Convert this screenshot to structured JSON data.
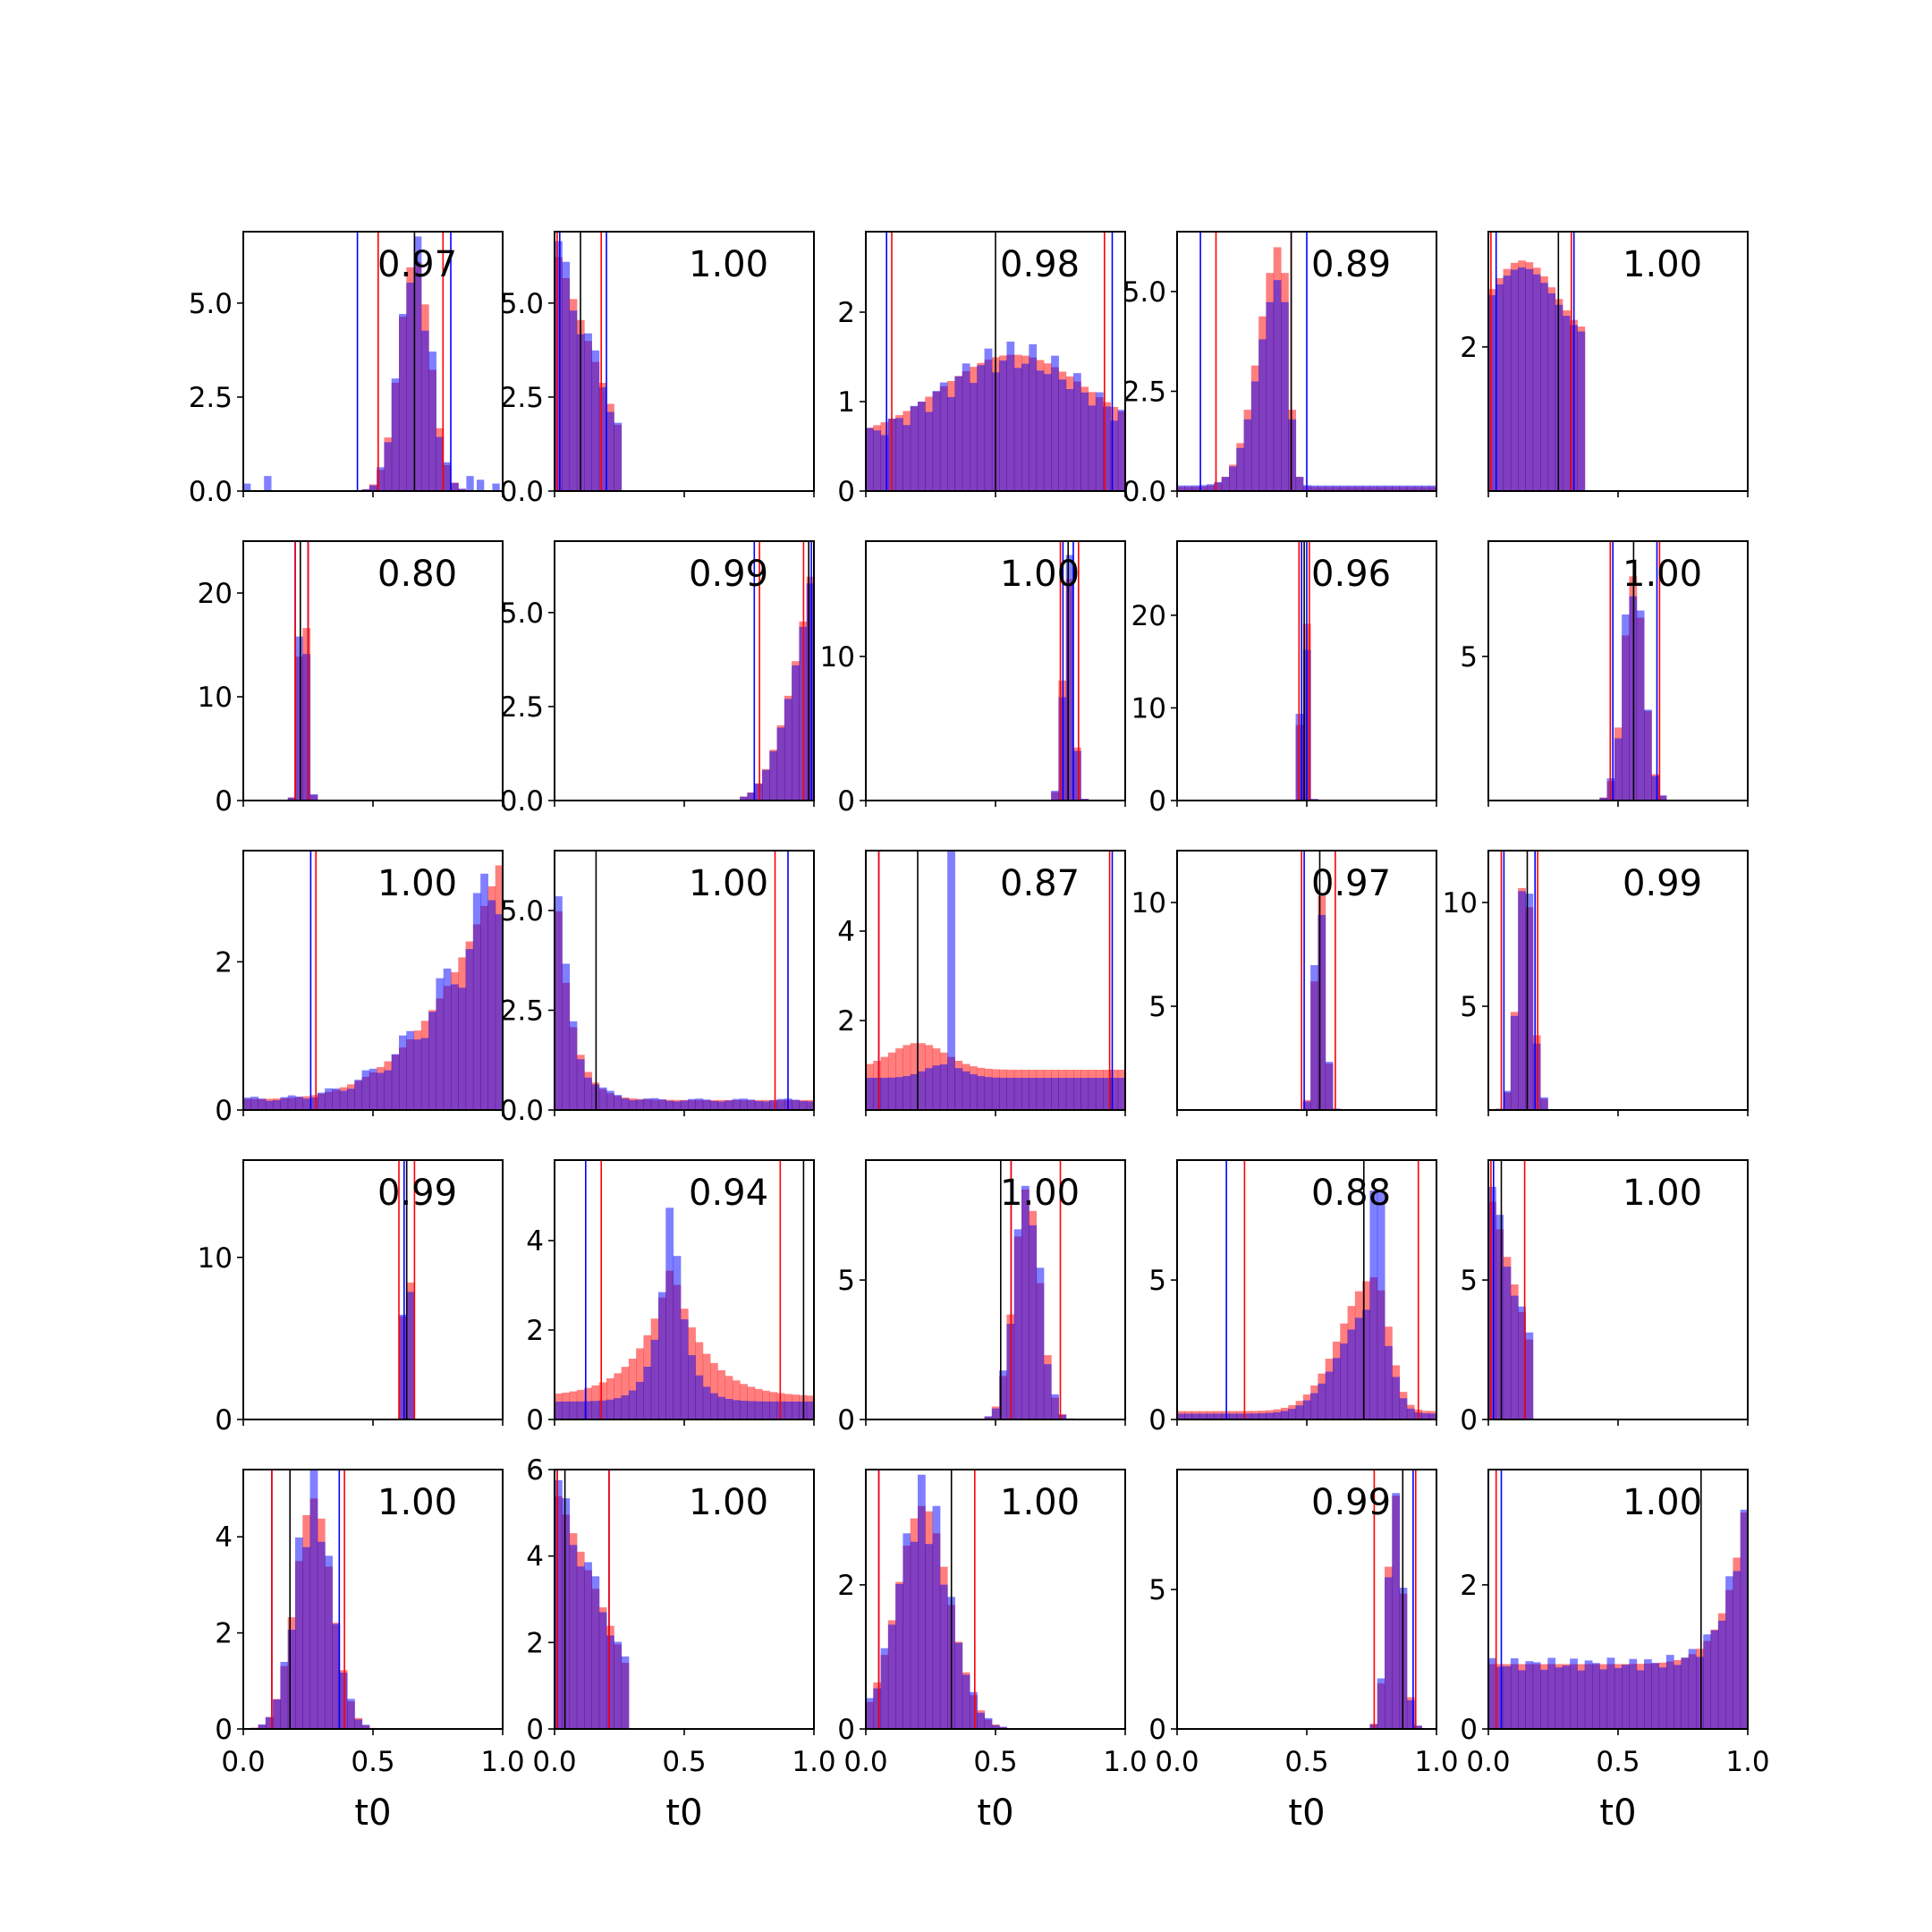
{
  "figure": {
    "xlabel": "t0",
    "xlim": [
      0,
      1
    ],
    "xticks": [
      "0.0",
      "0.5",
      "1.0"
    ],
    "colors": {
      "red": "#ff0000",
      "blue": "#0000ff",
      "black": "#000000",
      "overlap": "#7f3fbf"
    }
  },
  "chart_data": [
    {
      "type": "bar",
      "annotation": "0.97",
      "ylim": [
        0,
        6.9
      ],
      "yticks": [
        "0.0",
        "2.5",
        "5.0"
      ],
      "lines": {
        "blue": [
          0.44,
          0.8
        ],
        "red": [
          0.52,
          0.77
        ],
        "black": [
          0.66
        ]
      },
      "hist": {
        "mu": 0.66,
        "sigma": 0.06,
        "peak": 6.2,
        "kind": "normal",
        "blueOutliers": [
          [
            0.08,
            0.4
          ],
          [
            0.0,
            0.2
          ],
          [
            0.86,
            0.4
          ],
          [
            0.9,
            0.3
          ],
          [
            0.96,
            0.2
          ]
        ]
      }
    },
    {
      "type": "bar",
      "annotation": "1.00",
      "ylim": [
        0,
        6.9
      ],
      "yticks": [
        "0.0",
        "2.5",
        "5.0"
      ],
      "lines": {
        "blue": [
          0.02,
          0.2
        ],
        "red": [
          0.01,
          0.18
        ],
        "black": [
          0.1
        ]
      },
      "hist": {
        "kind": "decay",
        "start": 0.0,
        "end": 0.25,
        "peak": 6.5
      }
    },
    {
      "type": "bar",
      "annotation": "0.98",
      "ylim": [
        0,
        2.9
      ],
      "yticks": [
        "0",
        "1",
        "2"
      ],
      "lines": {
        "blue": [
          0.08,
          0.95
        ],
        "red": [
          0.1,
          0.92
        ],
        "black": [
          0.5
        ]
      },
      "hist": {
        "kind": "broad",
        "mu": 0.57,
        "sigma": 0.28,
        "peak": 1.5,
        "base": 0.5
      }
    },
    {
      "type": "bar",
      "annotation": "0.89",
      "ylim": [
        0,
        6.5
      ],
      "yticks": [
        "0.0",
        "2.5",
        "5.0"
      ],
      "lines": {
        "blue": [
          0.09,
          0.5
        ],
        "red": [
          0.15,
          0.44
        ],
        "black": [
          0.44
        ]
      },
      "hist": {
        "kind": "skewleft",
        "mu": 0.4,
        "sigma": 0.09,
        "peak": 5.8,
        "tail": 0.1
      }
    },
    {
      "type": "bar",
      "annotation": "1.00",
      "ylim": [
        0,
        3.6
      ],
      "yticks": [
        "2"
      ],
      "lines": {
        "blue": [
          0.03,
          0.33
        ],
        "red": [
          0.01,
          0.32
        ],
        "black": [
          0.27
        ]
      },
      "hist": {
        "kind": "plateau",
        "start": 0.0,
        "end": 0.38,
        "peak": 3.2
      }
    },
    {
      "type": "bar",
      "annotation": "0.80",
      "ylim": [
        0,
        25
      ],
      "yticks": [
        "0",
        "10",
        "20"
      ],
      "lines": {
        "blue": [
          0.2,
          0.25
        ],
        "red": [
          0.2,
          0.25
        ],
        "black": [
          0.22
        ]
      },
      "hist": {
        "kind": "normal",
        "mu": 0.23,
        "sigma": 0.015,
        "peak": 24
      }
    },
    {
      "type": "bar",
      "annotation": "0.99",
      "ylim": [
        0,
        6.9
      ],
      "yticks": [
        "0.0",
        "2.5",
        "5.0"
      ],
      "lines": {
        "blue": [
          0.77,
          0.99
        ],
        "red": [
          0.79,
          0.96
        ],
        "black": [
          0.98
        ]
      },
      "hist": {
        "kind": "ramp",
        "start": 0.72,
        "end": 1.0,
        "peak": 6.5
      }
    },
    {
      "type": "bar",
      "annotation": "1.00",
      "ylim": [
        0,
        18
      ],
      "yticks": [
        "0",
        "10"
      ],
      "lines": {
        "blue": [
          0.76,
          0.8
        ],
        "red": [
          0.75,
          0.82
        ],
        "black": [
          0.78
        ]
      },
      "hist": {
        "kind": "normal",
        "mu": 0.78,
        "sigma": 0.02,
        "peak": 16
      }
    },
    {
      "type": "bar",
      "annotation": "0.96",
      "ylim": [
        0,
        28
      ],
      "yticks": [
        "0",
        "10",
        "20"
      ],
      "lines": {
        "blue": [
          0.48,
          0.5
        ],
        "red": [
          0.47,
          0.51
        ],
        "black": [
          0.49
        ]
      },
      "hist": {
        "kind": "normal",
        "mu": 0.49,
        "sigma": 0.012,
        "peak": 27
      }
    },
    {
      "type": "bar",
      "annotation": "1.00",
      "ylim": [
        0,
        9
      ],
      "yticks": [
        "5"
      ],
      "lines": {
        "blue": [
          0.48,
          0.65
        ],
        "red": [
          0.47,
          0.66
        ],
        "black": [
          0.56
        ]
      },
      "hist": {
        "kind": "normal",
        "mu": 0.56,
        "sigma": 0.04,
        "peak": 7.8
      }
    },
    {
      "type": "bar",
      "annotation": "1.00",
      "ylim": [
        0,
        3.5
      ],
      "yticks": [
        "0",
        "2"
      ],
      "lines": {
        "blue": [
          0.26
        ],
        "red": [
          0.28
        ],
        "black": [
          1.0
        ]
      },
      "hist": {
        "kind": "exprise",
        "start": 0.0,
        "end": 1.0,
        "peak": 3.3
      }
    },
    {
      "type": "bar",
      "annotation": "1.00",
      "ylim": [
        0,
        6.5
      ],
      "yticks": [
        "0.0",
        "2.5",
        "5.0"
      ],
      "lines": {
        "blue": [
          0.9
        ],
        "red": [
          0.85
        ],
        "black": [
          0.16
        ]
      },
      "hist": {
        "kind": "decaytail",
        "peak": 6.0
      }
    },
    {
      "type": "bar",
      "annotation": "0.87",
      "ylim": [
        0,
        5.8
      ],
      "yticks": [
        "2",
        "4"
      ],
      "lines": {
        "blue": [
          0.05,
          0.95
        ],
        "red": [
          0.05,
          0.94
        ],
        "black": [
          0.2
        ]
      },
      "hist": {
        "kind": "spike",
        "spike": 0.33,
        "spikeH": 5.2,
        "base": 0.9
      }
    },
    {
      "type": "bar",
      "annotation": "0.97",
      "ylim": [
        0,
        12.5
      ],
      "yticks": [
        "5",
        "10"
      ],
      "lines": {
        "blue": [
          0.49
        ],
        "red": [
          0.48,
          0.61
        ],
        "black": [
          0.55
        ]
      },
      "hist": {
        "kind": "normal",
        "mu": 0.55,
        "sigma": 0.02,
        "peak": 11
      }
    },
    {
      "type": "bar",
      "annotation": "0.99",
      "ylim": [
        0,
        12.5
      ],
      "yticks": [
        "5",
        "10"
      ],
      "lines": {
        "blue": [
          0.06,
          0.18
        ],
        "red": [
          0.05,
          0.19
        ],
        "black": [
          0.15
        ]
      },
      "hist": {
        "kind": "normal",
        "mu": 0.14,
        "sigma": 0.03,
        "peak": 11.5
      }
    },
    {
      "type": "bar",
      "annotation": "0.99",
      "ylim": [
        0,
        16
      ],
      "yticks": [
        "0",
        "10"
      ],
      "lines": {
        "blue": [
          0.62
        ],
        "red": [
          0.6,
          0.66
        ],
        "black": [
          0.63
        ]
      },
      "hist": {
        "kind": "normal",
        "mu": 0.63,
        "sigma": 0.012,
        "peak": 15
      }
    },
    {
      "type": "bar",
      "annotation": "0.94",
      "ylim": [
        0,
        5.8
      ],
      "yticks": [
        "0",
        "2",
        "4"
      ],
      "lines": {
        "blue": [
          0.12
        ],
        "red": [
          0.18,
          0.87
        ],
        "black": [
          0.96
        ]
      },
      "hist": {
        "kind": "cusp",
        "mu": 0.45,
        "peak": 5.0,
        "base": 0.5
      }
    },
    {
      "type": "bar",
      "annotation": "1.00",
      "ylim": [
        0,
        9.3
      ],
      "yticks": [
        "0",
        "5"
      ],
      "lines": {
        "blue": [
          0.56
        ],
        "red": [
          0.56,
          0.75
        ],
        "black": [
          0.52
        ]
      },
      "hist": {
        "kind": "normal",
        "mu": 0.62,
        "sigma": 0.05,
        "peak": 8.3
      }
    },
    {
      "type": "bar",
      "annotation": "0.88",
      "ylim": [
        0,
        9.3
      ],
      "yticks": [
        "0",
        "5"
      ],
      "lines": {
        "blue": [
          0.19
        ],
        "red": [
          0.26,
          0.93
        ],
        "black": [
          0.72
        ]
      },
      "hist": {
        "kind": "skewright",
        "mu": 0.76,
        "peak": 8.0,
        "base": 0.3
      }
    },
    {
      "type": "bar",
      "annotation": "1.00",
      "ylim": [
        0,
        9.3
      ],
      "yticks": [
        "0",
        "5"
      ],
      "lines": {
        "blue": [
          0.02
        ],
        "red": [
          0.01,
          0.14
        ],
        "black": [
          0.05
        ]
      },
      "hist": {
        "kind": "decay",
        "start": 0.0,
        "end": 0.18,
        "peak": 8.3
      }
    },
    {
      "type": "bar",
      "annotation": "1.00",
      "ylim": [
        0,
        5.4
      ],
      "yticks": [
        "0",
        "2",
        "4"
      ],
      "lines": {
        "blue": [
          0.11,
          0.37
        ],
        "red": [
          0.11,
          0.39
        ],
        "black": [
          0.18
        ]
      },
      "hist": {
        "kind": "normal",
        "mu": 0.27,
        "sigma": 0.07,
        "peak": 4.8
      }
    },
    {
      "type": "bar",
      "annotation": "1.00",
      "ylim": [
        0,
        6
      ],
      "yticks": [
        "0",
        "2",
        "4",
        "6"
      ],
      "lines": {
        "blue": [
          0.01,
          0.21
        ],
        "red": [
          0.01,
          0.21
        ],
        "black": [
          0.04
        ]
      },
      "hist": {
        "kind": "decay",
        "start": 0.0,
        "end": 0.28,
        "peak": 5.6
      }
    },
    {
      "type": "bar",
      "annotation": "1.00",
      "ylim": [
        0,
        3.6
      ],
      "yticks": [
        "0",
        "2"
      ],
      "lines": {
        "blue": [
          0.05
        ],
        "red": [
          0.05,
          0.42
        ],
        "black": [
          0.33
        ]
      },
      "hist": {
        "kind": "normal",
        "mu": 0.22,
        "sigma": 0.1,
        "peak": 3.1
      }
    },
    {
      "type": "bar",
      "annotation": "0.99",
      "ylim": [
        0,
        9.3
      ],
      "yticks": [
        "0",
        "5"
      ],
      "lines": {
        "blue": [
          0.91
        ],
        "red": [
          0.76,
          0.92
        ],
        "black": [
          0.87
        ]
      },
      "hist": {
        "kind": "normal",
        "mu": 0.84,
        "sigma": 0.03,
        "peak": 8.4
      }
    },
    {
      "type": "bar",
      "annotation": "1.00",
      "ylim": [
        0,
        3.6
      ],
      "yticks": [
        "0",
        "2"
      ],
      "lines": {
        "blue": [
          0.05
        ],
        "red": [
          0.03,
          1.0
        ],
        "black": [
          0.82
        ]
      },
      "hist": {
        "kind": "flatU",
        "peak": 3.4,
        "base": 0.9
      }
    }
  ]
}
